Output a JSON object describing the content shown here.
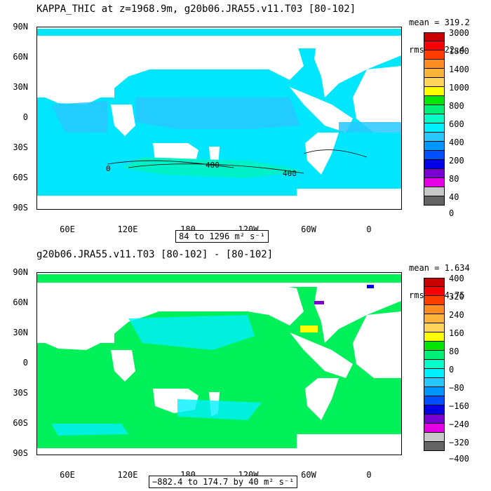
{
  "top": {
    "title": "KAPPA_THIC at z=1968.9m, g20b06.JRA55.v11.T03 [80-102]",
    "stats": [
      "mean = 319.2",
      "rms = 322.4"
    ],
    "range_label": "84 to 1296 m² s⁻¹",
    "y_labels": [
      "90N",
      "60N",
      "30N",
      "0",
      "30S",
      "60S",
      "90S"
    ],
    "x_labels": [
      "60E",
      "120E",
      "180",
      "120W",
      "60W",
      "0"
    ],
    "contour_labels": [
      "0",
      "400",
      "400"
    ],
    "colorbar": {
      "labels": [
        "3000",
        "1800",
        "1400",
        "1000",
        "800",
        "600",
        "400",
        "200",
        "80",
        "40",
        "0"
      ],
      "colors": [
        "#c80000",
        "#ff0000",
        "#ff3c00",
        "#ff8c1e",
        "#ffb43c",
        "#ffd25a",
        "#ffff00",
        "#00e600",
        "#00f07a",
        "#00ffc8",
        "#00f0ff",
        "#28c8ff",
        "#0096ff",
        "#0050ff",
        "#0000e6",
        "#7800d2",
        "#e600e6",
        "#c8c8c8",
        "#646464"
      ]
    }
  },
  "bottom": {
    "title": "g20b06.JRA55.v11.T03 [80-102] -  [80-102]",
    "stats": [
      "mean = 1.634",
      "rms = 24.75"
    ],
    "range_label": "−882.4 to 174.7 by 40 m² s⁻¹",
    "y_labels": [
      "90N",
      "60N",
      "30N",
      "0",
      "30S",
      "60S",
      "90S"
    ],
    "x_labels": [
      "60E",
      "120E",
      "180",
      "120W",
      "60W",
      "0"
    ],
    "colorbar": {
      "labels": [
        "400",
        "320",
        "240",
        "160",
        "80",
        "0",
        "−80",
        "−160",
        "−240",
        "−320",
        "−400"
      ],
      "colors": [
        "#c80000",
        "#ff0000",
        "#ff3c00",
        "#ff8c1e",
        "#ffb43c",
        "#ffd25a",
        "#ffff00",
        "#00e600",
        "#00f07a",
        "#00ffc8",
        "#00f0ff",
        "#28c8ff",
        "#0096ff",
        "#0050ff",
        "#0000e6",
        "#7800d2",
        "#e600e6",
        "#c8c8c8",
        "#646464"
      ]
    }
  }
}
